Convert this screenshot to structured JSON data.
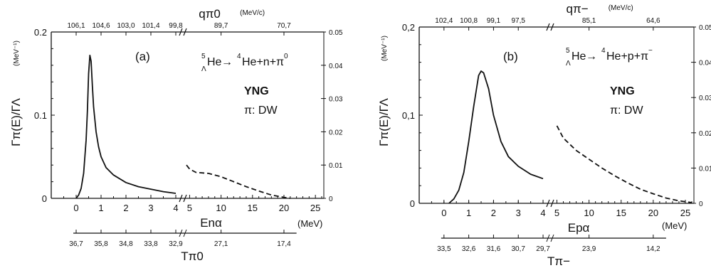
{
  "chart_data": [
    {
      "type": "line",
      "panel_label": "(a)",
      "reaction": {
        "lambda": "Λ",
        "mass": "5",
        "target": "He",
        "arrow": "→",
        "products": "He+n+π",
        "prod_mass": "4",
        "pion_charge": "0"
      },
      "model": "YNG",
      "pi_label": "π: DW",
      "ylabel": "Γπ(E)/ΓΛ",
      "yunit": "(MeV⁻¹)",
      "left_y": {
        "range": [
          0,
          0.2
        ],
        "ticks": [
          "0",
          "0.1",
          "0.2"
        ]
      },
      "right_y": {
        "range": [
          0,
          0.05
        ],
        "ticks": [
          "0",
          "0.01",
          "0.02",
          "0.03",
          "0.04",
          "0.05"
        ]
      },
      "bottom_x": {
        "label": "Enα",
        "unit": "(MeV)",
        "segment1": {
          "range": [
            -1,
            4.2
          ],
          "ticks": [
            "0",
            "1",
            "2",
            "3",
            "4"
          ]
        },
        "segment2": {
          "range": [
            4.5,
            26
          ],
          "ticks": [
            "5",
            "10",
            "15",
            "20",
            "25"
          ]
        }
      },
      "top_x": {
        "label": "qπ0",
        "unit": "(MeV/c)",
        "ticks": [
          "106,1",
          "104,6",
          "103,0",
          "101,4",
          "99,8",
          "89,7",
          "70,7"
        ],
        "at_E": [
          0,
          1,
          2,
          3,
          4,
          10,
          20
        ]
      },
      "lower_x": {
        "label": "Tπ0",
        "ticks": [
          "36,7",
          "35,8",
          "34,8",
          "33,8",
          "32,9",
          "27,1",
          "17,4"
        ],
        "at_E": [
          0,
          1,
          2,
          3,
          4,
          10,
          20
        ]
      },
      "series": [
        {
          "style": "solid",
          "axis": "left",
          "x": [
            0,
            0.1,
            0.2,
            0.3,
            0.4,
            0.45,
            0.5,
            0.55,
            0.6,
            0.65,
            0.7,
            0.8,
            0.9,
            1.0,
            1.2,
            1.5,
            2.0,
            2.5,
            3.0,
            3.5,
            4.0
          ],
          "y": [
            0,
            0.004,
            0.012,
            0.03,
            0.07,
            0.105,
            0.15,
            0.172,
            0.165,
            0.135,
            0.11,
            0.08,
            0.062,
            0.05,
            0.037,
            0.028,
            0.019,
            0.014,
            0.011,
            0.008,
            0.006
          ]
        },
        {
          "style": "dashed",
          "axis": "right",
          "x": [
            4.5,
            5,
            6,
            8,
            10,
            12,
            14,
            16,
            18,
            20,
            21
          ],
          "y": [
            0.01,
            0.0088,
            0.0078,
            0.0075,
            0.0065,
            0.005,
            0.0035,
            0.0022,
            0.001,
            0.0003,
            0
          ]
        }
      ]
    },
    {
      "type": "line",
      "panel_label": "(b)",
      "reaction": {
        "lambda": "Λ",
        "mass": "5",
        "target": "He",
        "arrow": "→",
        "products": "He+p+π",
        "prod_mass": "4",
        "pion_charge": "−"
      },
      "model": "YNG",
      "pi_label": "π: DW",
      "ylabel": "Γπ(E)/ΓΛ",
      "yunit": "(MeV⁻¹)",
      "left_y": {
        "range": [
          0,
          0.2
        ],
        "ticks": [
          "0",
          "0,1",
          "0,2"
        ]
      },
      "right_y": {
        "range": [
          0,
          0.05
        ],
        "ticks": [
          "0",
          "0.01",
          "0.02",
          "0.03",
          "0.04",
          "0.05"
        ]
      },
      "bottom_x": {
        "label": "Epα",
        "unit": "(MeV)",
        "segment1": {
          "range": [
            -1,
            4.2
          ],
          "ticks": [
            "0",
            "1",
            "2",
            "3",
            "4"
          ]
        },
        "segment2": {
          "range": [
            4.5,
            26
          ],
          "ticks": [
            "5",
            "10",
            "15",
            "20",
            "25"
          ]
        }
      },
      "top_x": {
        "label": "qπ−",
        "unit": "(MeV/c)",
        "ticks": [
          "102,4",
          "100,8",
          "99,1",
          "97,5",
          "85,1",
          "64,6"
        ],
        "at_E": [
          0,
          1,
          2,
          3,
          10,
          20
        ]
      },
      "lower_x": {
        "label": "Tπ−",
        "ticks": [
          "33,5",
          "32,6",
          "31,6",
          "30,7",
          "29,7",
          "23,9",
          "14,2"
        ],
        "at_E": [
          0,
          1,
          2,
          3,
          4,
          10,
          20
        ]
      },
      "series": [
        {
          "style": "solid",
          "axis": "left",
          "x": [
            0.2,
            0.4,
            0.6,
            0.8,
            1.0,
            1.2,
            1.4,
            1.5,
            1.6,
            1.8,
            2.0,
            2.3,
            2.6,
            3.0,
            3.5,
            4.0
          ],
          "y": [
            0,
            0.005,
            0.015,
            0.035,
            0.07,
            0.11,
            0.145,
            0.15,
            0.148,
            0.13,
            0.1,
            0.07,
            0.053,
            0.042,
            0.033,
            0.028
          ]
        },
        {
          "style": "dashed",
          "axis": "right",
          "x": [
            5,
            6,
            8,
            10,
            12,
            14,
            16,
            18,
            20,
            22,
            24,
            26
          ],
          "y": [
            0.022,
            0.0185,
            0.015,
            0.0125,
            0.01,
            0.0078,
            0.0058,
            0.004,
            0.0027,
            0.0015,
            0.0007,
            0.0002
          ]
        }
      ]
    }
  ]
}
